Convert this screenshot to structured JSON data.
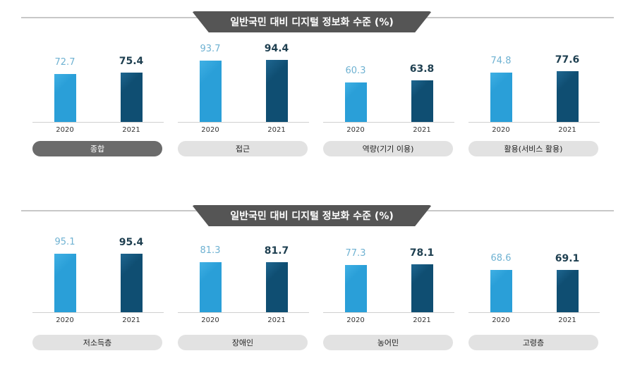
{
  "colors": {
    "2020": "#2a9fd8",
    "2021": "#0f4e72",
    "banner": "#555555",
    "selected_pill": "#6b6b6b",
    "pill": "#e2e2e2"
  },
  "chart_data": [
    {
      "type": "bar",
      "title": "일반국민 대비 디지털 정보화 수준 (%)",
      "ylim": [
        0,
        100
      ],
      "groups": [
        {
          "label": "종합",
          "selected": true,
          "categories": [
            "2020",
            "2021"
          ],
          "values": [
            72.7,
            75.4
          ],
          "value_labels": [
            "72.7",
            "75.4"
          ]
        },
        {
          "label": "접근",
          "selected": false,
          "categories": [
            "2020",
            "2021"
          ],
          "values": [
            93.7,
            94.4
          ],
          "value_labels": [
            "93.7",
            "94.4"
          ]
        },
        {
          "label": "역량(기기 이용)",
          "selected": false,
          "categories": [
            "2020",
            "2021"
          ],
          "values": [
            60.3,
            63.8
          ],
          "value_labels": [
            "60.3",
            "63.8"
          ]
        },
        {
          "label": "활용(서비스 활용)",
          "selected": false,
          "categories": [
            "2020",
            "2021"
          ],
          "values": [
            74.8,
            77.6
          ],
          "value_labels": [
            "74.8",
            "77.6"
          ]
        }
      ]
    },
    {
      "type": "bar",
      "title": "일반국민 대비 디지털 정보화 수준 (%)",
      "ylim": [
        0,
        100
      ],
      "groups": [
        {
          "label": "저소득층",
          "selected": false,
          "categories": [
            "2020",
            "2021"
          ],
          "values": [
            95.1,
            95.4
          ],
          "value_labels": [
            "95.1",
            "95.4"
          ]
        },
        {
          "label": "장애인",
          "selected": false,
          "categories": [
            "2020",
            "2021"
          ],
          "values": [
            81.3,
            81.7
          ],
          "value_labels": [
            "81.3",
            "81.7"
          ]
        },
        {
          "label": "농어민",
          "selected": false,
          "categories": [
            "2020",
            "2021"
          ],
          "values": [
            77.3,
            78.1
          ],
          "value_labels": [
            "77.3",
            "78.1"
          ]
        },
        {
          "label": "고령층",
          "selected": false,
          "categories": [
            "2020",
            "2021"
          ],
          "values": [
            68.6,
            69.1
          ],
          "value_labels": [
            "68.6",
            "69.1"
          ]
        }
      ]
    }
  ]
}
